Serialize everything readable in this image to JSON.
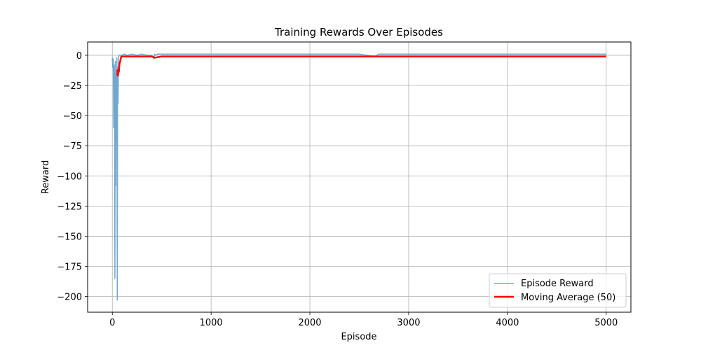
{
  "chart_data": {
    "type": "line",
    "title": "Training Rewards Over Episodes",
    "xlabel": "Episode",
    "ylabel": "Reward",
    "xlim": [
      -250,
      5250
    ],
    "ylim": [
      -213,
      11
    ],
    "xticks": [
      0,
      1000,
      2000,
      3000,
      4000,
      5000
    ],
    "xtick_labels": [
      "0",
      "1000",
      "2000",
      "3000",
      "4000",
      "5000"
    ],
    "yticks": [
      0,
      -25,
      -50,
      -75,
      -100,
      -125,
      -150,
      -175,
      -200
    ],
    "ytick_labels": [
      "0",
      "−25",
      "−50",
      "−75",
      "−100",
      "−125",
      "−150",
      "−175",
      "−200"
    ],
    "grid": true,
    "legend_position": "bottom-right",
    "series": [
      {
        "name": "Episode Reward",
        "color": "#6fa8cf",
        "x": [
          0,
          5,
          10,
          14,
          18,
          22,
          26,
          30,
          34,
          38,
          42,
          46,
          50,
          54,
          58,
          62,
          66,
          70,
          75,
          80,
          90,
          100,
          120,
          150,
          200,
          250,
          300,
          350,
          400,
          420,
          430,
          440,
          460,
          500,
          600,
          800,
          1000,
          1500,
          2000,
          2500,
          2660,
          2700,
          3000,
          3500,
          4000,
          4500,
          5000
        ],
        "values": [
          -2,
          -10,
          -3,
          -60,
          -8,
          -30,
          -185,
          -5,
          -108,
          -15,
          -70,
          -2,
          -203,
          -10,
          -40,
          -3,
          -1,
          0,
          0,
          0,
          0,
          0,
          1,
          0,
          1,
          0,
          1,
          0,
          0,
          -3,
          1,
          0,
          1,
          1,
          1,
          1,
          1,
          1,
          1,
          1,
          -1,
          1,
          1,
          1,
          1,
          1,
          1
        ]
      },
      {
        "name": "Moving Average (50)",
        "color": "#ff0000",
        "x": [
          49,
          52,
          55,
          58,
          61,
          64,
          67,
          70,
          75,
          80,
          85,
          90,
          100,
          120,
          150,
          200,
          300,
          400,
          430,
          500,
          1000,
          1500,
          2000,
          2500,
          3000,
          3500,
          4000,
          4500,
          4800,
          5000
        ],
        "values": [
          -12,
          -16,
          -17,
          -16,
          -12,
          -14,
          -13,
          -9,
          -6,
          -5,
          -3,
          -1,
          -1,
          -1,
          -1,
          -1,
          -1,
          -1,
          -2,
          -1,
          -1,
          -1,
          -1,
          -1,
          -1,
          -1,
          -1,
          -1,
          -1,
          -1
        ]
      }
    ]
  }
}
